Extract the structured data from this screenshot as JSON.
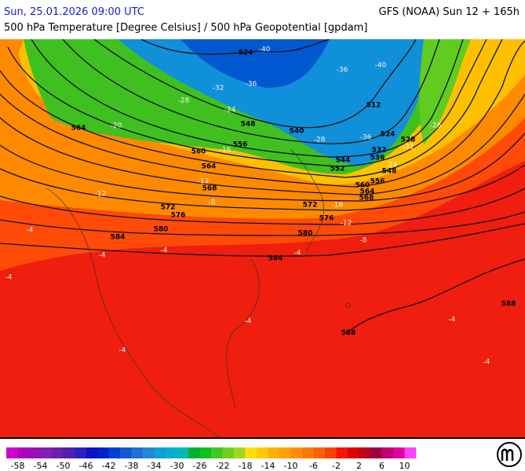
{
  "header": {
    "valid_time": "Sun, 25.01.2026 09:00 UTC",
    "model_run": "GFS (NOAA) Sun 12 + 165h",
    "subtitle": "500 hPa Temperature [Degree Celsius] / 500 hPa Geopotential [gpdam]"
  },
  "map": {
    "height_labels": [
      524,
      548,
      540,
      512,
      524,
      528,
      532,
      536,
      544,
      552,
      548,
      556,
      560,
      564,
      568,
      564,
      556,
      560,
      564,
      568,
      572,
      576,
      572,
      576,
      580,
      580,
      584,
      584,
      588,
      588
    ],
    "temperature_labels": [
      -40,
      -36,
      -32,
      -28,
      -24,
      -36,
      -40,
      -36,
      -32,
      -28,
      -28,
      -24,
      -20,
      -16,
      -12,
      -8,
      -12,
      -16,
      -12,
      -8,
      -4,
      -4,
      -4,
      -4,
      -4,
      -4,
      -4,
      -4,
      -4
    ]
  },
  "legend": {
    "ticks": [
      -58,
      -54,
      -50,
      -46,
      -42,
      -38,
      -34,
      -30,
      -26,
      -22,
      -18,
      -14,
      -10,
      -6,
      -2,
      2,
      6,
      10
    ],
    "colors": [
      "#d000d0",
      "#b000c0",
      "#9a10b8",
      "#8020b0",
      "#6a20b0",
      "#5020b0",
      "#3020c0",
      "#1010c8",
      "#0020d0",
      "#0040d8",
      "#1058d8",
      "#2070d8",
      "#2088d8",
      "#10a0d8",
      "#00b0d0",
      "#00b8b8",
      "#00b030",
      "#10c020",
      "#40c820",
      "#70d020",
      "#a0d820",
      "#ffe000",
      "#ffc800",
      "#ffb000",
      "#ffa000",
      "#ff8c00",
      "#ff7800",
      "#ff6000",
      "#ff4000",
      "#ff1000",
      "#e00000",
      "#c00020",
      "#a00040",
      "#c00070",
      "#e000a0",
      "#ff40ff"
    ]
  }
}
